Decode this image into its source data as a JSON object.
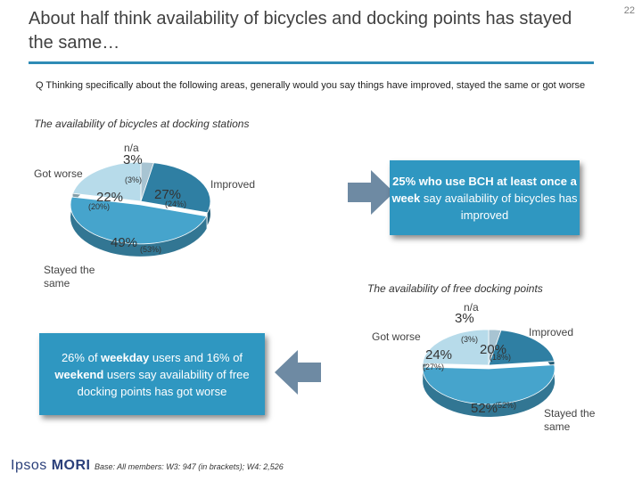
{
  "page": {
    "title": "About half think availability of bicycles and docking points has stayed the same…",
    "page_number": "22",
    "question": "Q Thinking specifically about the following areas, generally would you say things have improved, stayed the same or got worse"
  },
  "chart_data": [
    {
      "type": "pie",
      "title": "The availability of bicycles at docking stations",
      "slices": [
        {
          "label": "n/a",
          "value": 3,
          "value_text": "3%",
          "bracket_text": "(3%)",
          "color": "#a8c4d2"
        },
        {
          "label": "Improved",
          "value": 27,
          "value_text": "27%",
          "bracket_text": "(24%)",
          "color": "#2f7fa3"
        },
        {
          "label": "Stayed the same",
          "value": 49,
          "value_text": "49%",
          "bracket_text": "(53%)",
          "color": "#46a4cc"
        },
        {
          "label": "Got worse",
          "value": 22,
          "value_text": "22%",
          "bracket_text": "(20%)",
          "color": "#b7dbea"
        }
      ]
    },
    {
      "type": "pie",
      "title": "The availability of free docking points",
      "slices": [
        {
          "label": "n/a",
          "value": 3,
          "value_text": "3%",
          "bracket_text": "(3%)",
          "color": "#a8c4d2"
        },
        {
          "label": "Improved",
          "value": 20,
          "value_text": "20%",
          "bracket_text": "(18%)",
          "color": "#2f7fa3"
        },
        {
          "label": "Stayed the same",
          "value": 52,
          "value_text": "52%",
          "bracket_text": "(52%)",
          "color": "#46a4cc"
        },
        {
          "label": "Got worse",
          "value": 24,
          "value_text": "24%",
          "bracket_text": "(27%)",
          "color": "#b7dbea"
        }
      ]
    }
  ],
  "callouts": {
    "bicycles": {
      "parts": [
        {
          "text": "25% who use BCH ",
          "bold": true
        },
        {
          "text": "at least once a week",
          "bold": true
        },
        {
          "text": " say availability of bicycles has improved",
          "bold": false
        }
      ]
    },
    "docking": {
      "parts": [
        {
          "text": "26% of ",
          "bold": false
        },
        {
          "text": "weekday",
          "bold": true
        },
        {
          "text": " users and 16% of ",
          "bold": false
        },
        {
          "text": "weekend",
          "bold": true
        },
        {
          "text": " users say availability of free docking points has got worse",
          "bold": false
        }
      ]
    }
  },
  "footer": {
    "logo_left": "Ipsos",
    "logo_right": "MORI",
    "base_note": "Base: All members: W3: 947 (in brackets); W4: 2,526"
  },
  "colors": {
    "accent": "#2e8bb5",
    "callout_bg": "#2f97c1",
    "arrow": "#6e8aa3"
  }
}
